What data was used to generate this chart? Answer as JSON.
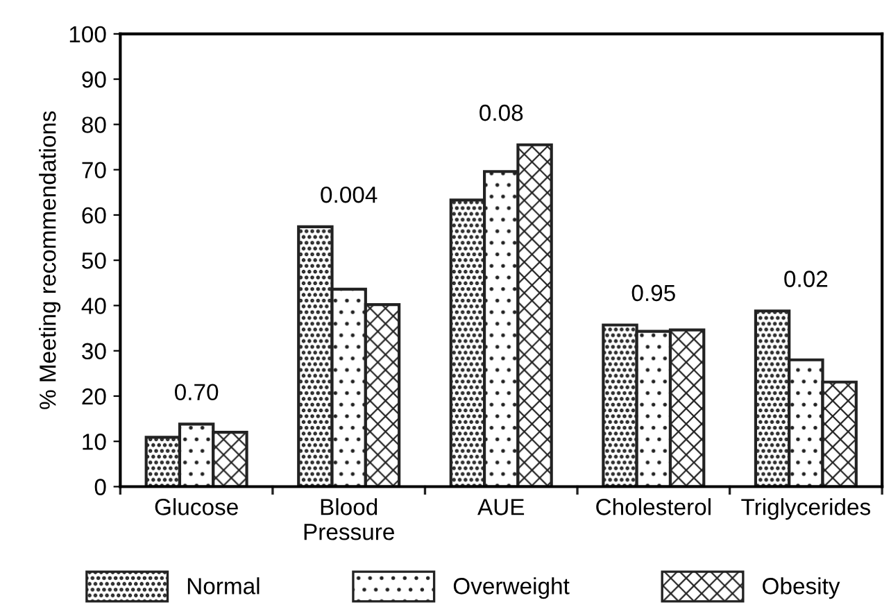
{
  "chart_data": {
    "type": "bar",
    "ylabel": "% Meeting recommendations",
    "categories": [
      "Glucose",
      "Blood\nPressure",
      "AUE",
      "Cholesterol",
      "Triglycerides"
    ],
    "series": [
      {
        "name": "Normal",
        "color": "#222222",
        "values": [
          10.9,
          57.4,
          63.3,
          35.7,
          38.8
        ]
      },
      {
        "name": "Overweight",
        "color": "#222222",
        "values": [
          13.8,
          43.6,
          69.6,
          34.3,
          28.0
        ]
      },
      {
        "name": "Obesity",
        "color": "#222222",
        "values": [
          12.0,
          40.2,
          75.5,
          34.6,
          23.1
        ]
      }
    ],
    "annotations": [
      "0.70",
      "0.004",
      "0.08",
      "0.95",
      "0.02"
    ],
    "ylim": [
      0,
      100
    ],
    "yticks": [
      0,
      10,
      20,
      30,
      40,
      50,
      60,
      70,
      80,
      90,
      100
    ],
    "grid": false,
    "legend": "bottom"
  }
}
